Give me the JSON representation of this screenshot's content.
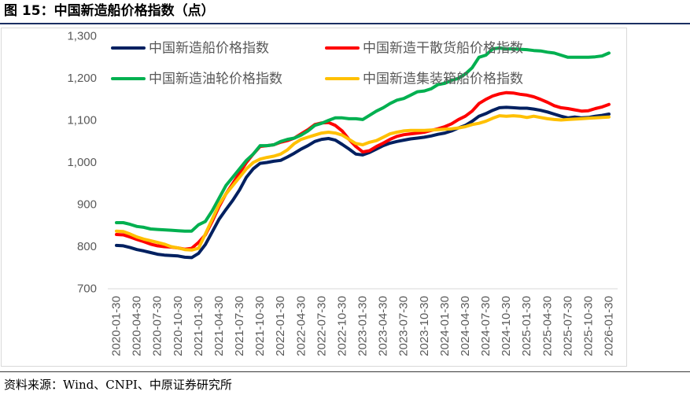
{
  "source": "资料来源：Wind、CNPI、中原证券研究所",
  "chart_data": {
    "type": "line",
    "title": "图 15：中国新造船价格指数（点）",
    "grid": false,
    "legend": "top-left, inside plot, two rows",
    "ylim": [
      700,
      1300
    ],
    "yticks": [
      700,
      800,
      900,
      1000,
      1100,
      1200,
      1300
    ],
    "ytick_labels": [
      "700",
      "800",
      "900",
      "1,000",
      "1,100",
      "1,200",
      "1,300"
    ],
    "x_tick_labels": [
      "2020-01-30",
      "2020-04-30",
      "2020-07-30",
      "2020-10-30",
      "2021-01-30",
      "2021-04-30",
      "2021-07-30",
      "2021-10-30",
      "2022-01-30",
      "2022-04-30",
      "2022-07-30",
      "2022-10-30",
      "2023-01-30",
      "2023-04-30",
      "2023-07-30",
      "2023-10-30",
      "2024-01-30",
      "2024-04-30",
      "2024-07-30",
      "2024-10-30",
      "2025-01-30",
      "2025-04-30",
      "2025-07-30",
      "2025-10-30",
      "2026-01-30"
    ],
    "x": [
      "2020-01-30",
      "2020-02-29",
      "2020-03-30",
      "2020-04-30",
      "2020-05-30",
      "2020-06-30",
      "2020-07-30",
      "2020-08-30",
      "2020-09-30",
      "2020-10-30",
      "2020-11-30",
      "2020-12-30",
      "2021-01-30",
      "2021-02-28",
      "2021-03-30",
      "2021-04-30",
      "2021-05-30",
      "2021-06-30",
      "2021-07-30",
      "2021-08-30",
      "2021-09-30",
      "2021-10-30",
      "2021-11-30",
      "2021-12-30",
      "2022-01-30",
      "2022-02-28",
      "2022-03-30",
      "2022-04-30",
      "2022-05-30",
      "2022-06-30",
      "2022-07-30",
      "2022-08-30",
      "2022-09-30",
      "2022-10-30",
      "2022-11-30",
      "2022-12-30",
      "2023-01-30",
      "2023-02-28",
      "2023-03-30",
      "2023-04-30",
      "2023-05-30",
      "2023-06-30",
      "2023-07-30",
      "2023-08-30",
      "2023-09-30",
      "2023-10-30",
      "2023-11-30",
      "2023-12-30",
      "2024-01-30",
      "2024-02-29",
      "2024-03-30",
      "2024-04-30",
      "2024-05-30",
      "2024-06-30",
      "2024-07-30",
      "2024-08-30",
      "2024-09-30",
      "2024-10-30",
      "2024-11-30",
      "2024-12-30",
      "2025-01-30",
      "2025-02-28",
      "2025-03-30",
      "2025-04-30",
      "2025-05-30",
      "2025-06-30",
      "2025-07-30",
      "2025-08-30",
      "2025-09-30",
      "2025-10-30",
      "2025-11-30",
      "2025-12-30",
      "2026-01-30"
    ],
    "series": [
      {
        "name": "中国新造船价格指数",
        "color": "#002060",
        "values": [
          803,
          802,
          798,
          793,
          790,
          786,
          782,
          780,
          779,
          778,
          775,
          774,
          784,
          805,
          835,
          865,
          888,
          910,
          935,
          965,
          985,
          998,
          1000,
          1003,
          1005,
          1013,
          1022,
          1032,
          1040,
          1050,
          1055,
          1057,
          1053,
          1043,
          1032,
          1020,
          1018,
          1024,
          1032,
          1040,
          1046,
          1050,
          1053,
          1056,
          1058,
          1060,
          1063,
          1067,
          1070,
          1075,
          1082,
          1088,
          1098,
          1110,
          1116,
          1124,
          1130,
          1131,
          1130,
          1129,
          1129,
          1127,
          1124,
          1120,
          1115,
          1110,
          1106,
          1108,
          1106,
          1107,
          1110,
          1112,
          1115
        ]
      },
      {
        "name": "中国新造干散货船价格指数",
        "color": "#FF0000",
        "values": [
          829,
          828,
          823,
          817,
          812,
          806,
          802,
          800,
          799,
          797,
          794,
          796,
          810,
          828,
          860,
          895,
          925,
          950,
          975,
          1000,
          1020,
          1038,
          1040,
          1042,
          1048,
          1052,
          1058,
          1068,
          1078,
          1090,
          1094,
          1095,
          1088,
          1075,
          1055,
          1038,
          1025,
          1028,
          1038,
          1046,
          1055,
          1062,
          1066,
          1068,
          1070,
          1072,
          1076,
          1080,
          1085,
          1092,
          1102,
          1110,
          1122,
          1140,
          1150,
          1158,
          1163,
          1166,
          1165,
          1162,
          1160,
          1156,
          1150,
          1143,
          1135,
          1130,
          1128,
          1125,
          1122,
          1123,
          1128,
          1132,
          1138
        ]
      },
      {
        "name": "中国新造油轮价格指数",
        "color": "#00B050",
        "values": [
          857,
          857,
          853,
          848,
          846,
          842,
          841,
          840,
          839,
          838,
          837,
          837,
          852,
          860,
          885,
          915,
          945,
          965,
          985,
          1005,
          1020,
          1040,
          1040,
          1042,
          1050,
          1055,
          1058,
          1065,
          1075,
          1088,
          1093,
          1100,
          1106,
          1106,
          1104,
          1104,
          1102,
          1112,
          1122,
          1130,
          1140,
          1148,
          1152,
          1160,
          1168,
          1170,
          1175,
          1185,
          1188,
          1195,
          1200,
          1210,
          1225,
          1250,
          1255,
          1270,
          1272,
          1270,
          1270,
          1269,
          1268,
          1266,
          1265,
          1262,
          1260,
          1255,
          1250,
          1250,
          1250,
          1250,
          1251,
          1253,
          1260
        ]
      },
      {
        "name": "中国新造集装箱船价格指数",
        "color": "#FFC000",
        "values": [
          837,
          836,
          830,
          823,
          818,
          814,
          810,
          806,
          800,
          797,
          793,
          792,
          796,
          830,
          865,
          900,
          925,
          945,
          965,
          985,
          1000,
          1008,
          1012,
          1015,
          1020,
          1030,
          1045,
          1055,
          1060,
          1065,
          1070,
          1072,
          1070,
          1065,
          1055,
          1045,
          1042,
          1048,
          1052,
          1060,
          1068,
          1072,
          1075,
          1076,
          1076,
          1076,
          1077,
          1078,
          1079,
          1080,
          1082,
          1085,
          1090,
          1093,
          1098,
          1105,
          1111,
          1110,
          1111,
          1110,
          1107,
          1110,
          1107,
          1104,
          1102,
          1101,
          1102,
          1103,
          1104,
          1105,
          1106,
          1107,
          1108
        ]
      }
    ]
  }
}
